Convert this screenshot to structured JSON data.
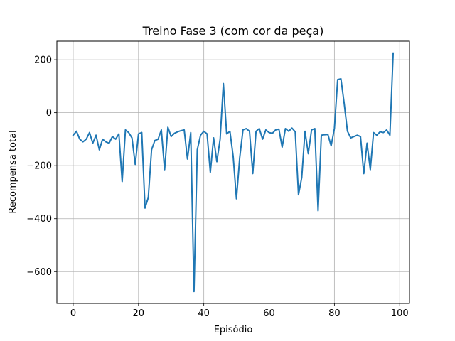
{
  "chart_data": {
    "type": "line",
    "title": "Treino Fase 3 (com cor da peça)",
    "xlabel": "Episódio",
    "ylabel": "Recompensa total",
    "xlim": [
      -5,
      103
    ],
    "ylim": [
      -720,
      270
    ],
    "xticks": [
      0,
      20,
      40,
      60,
      80,
      100
    ],
    "xtick_labels": [
      "0",
      "20",
      "40",
      "60",
      "80",
      "100"
    ],
    "yticks": [
      -600,
      -400,
      -200,
      0,
      200
    ],
    "ytick_labels": [
      "−600",
      "−400",
      "−200",
      "0",
      "200"
    ],
    "grid": true,
    "legend": "none",
    "series": [
      {
        "color": "#1f77b4",
        "x": [
          0,
          1,
          2,
          3,
          4,
          5,
          6,
          7,
          8,
          9,
          10,
          11,
          12,
          13,
          14,
          15,
          16,
          17,
          18,
          19,
          20,
          21,
          22,
          23,
          24,
          25,
          26,
          27,
          28,
          29,
          30,
          31,
          32,
          33,
          34,
          35,
          36,
          37,
          38,
          39,
          40,
          41,
          42,
          43,
          44,
          45,
          46,
          47,
          48,
          49,
          50,
          51,
          52,
          53,
          54,
          55,
          56,
          57,
          58,
          59,
          60,
          61,
          62,
          63,
          64,
          65,
          66,
          67,
          68,
          69,
          70,
          71,
          72,
          73,
          74,
          75,
          76,
          77,
          78,
          79,
          80,
          81,
          82,
          83,
          84,
          85,
          86,
          87,
          88,
          89,
          90,
          91,
          92,
          93,
          94,
          95,
          96,
          97,
          98
        ],
        "values": [
          -85,
          -70,
          -100,
          -110,
          -100,
          -75,
          -115,
          -85,
          -140,
          -100,
          -110,
          -115,
          -90,
          -100,
          -80,
          -260,
          -65,
          -75,
          -95,
          -195,
          -80,
          -75,
          -360,
          -320,
          -140,
          -105,
          -100,
          -65,
          -215,
          -55,
          -90,
          -78,
          -72,
          -68,
          -65,
          -175,
          -75,
          -675,
          -140,
          -85,
          -70,
          -80,
          -225,
          -95,
          -185,
          -100,
          110,
          -80,
          -70,
          -165,
          -325,
          -170,
          -65,
          -60,
          -70,
          -230,
          -70,
          -60,
          -100,
          -65,
          -75,
          -78,
          -65,
          -62,
          -130,
          -60,
          -70,
          -58,
          -72,
          -310,
          -245,
          -70,
          -155,
          -65,
          -60,
          -370,
          -85,
          -83,
          -82,
          -125,
          -60,
          125,
          128,
          35,
          -70,
          -95,
          -90,
          -85,
          -90,
          -230,
          -115,
          -215,
          -75,
          -85,
          -72,
          -75,
          -65,
          -85,
          225
        ]
      }
    ]
  }
}
